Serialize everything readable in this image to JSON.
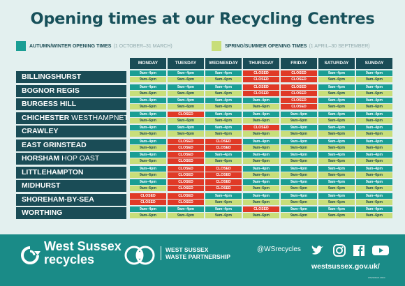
{
  "title": "Opening times at our Recycling Centres",
  "legend": {
    "autumn_label": "AUTUMN/WINTER OPENING TIMES",
    "autumn_range": "(1 OCTOBER–31 MARCH)",
    "spring_label": "SPRING/SUMMER OPENING TIMES",
    "spring_range": "(1 APRIL–30 SEPTEMBER)",
    "autumn_color": "#1a9e94",
    "spring_color": "#c8de7a",
    "closed_color": "#e03a27"
  },
  "days": [
    "MONDAY",
    "TUESDAY",
    "WEDNESDAY",
    "THURSDAY",
    "FRIDAY",
    "SATURDAY",
    "SUNDAY"
  ],
  "centres": [
    {
      "name": "BILLINGSHURST",
      "suffix": "",
      "autumn": [
        "9am–4pm",
        "9am–4pm",
        "9am–4pm",
        "CLOSED",
        "CLOSED",
        "9am–4pm",
        "9am–4pm"
      ],
      "spring": [
        "9am–6pm",
        "9am–6pm",
        "9am–6pm",
        "CLOSED",
        "CLOSED",
        "9am–6pm",
        "9am–6pm"
      ]
    },
    {
      "name": "BOGNOR REGIS",
      "suffix": "",
      "autumn": [
        "9am–4pm",
        "9am–4pm",
        "9am–4pm",
        "CLOSED",
        "CLOSED",
        "9am–4pm",
        "9am–4pm"
      ],
      "spring": [
        "9am–6pm",
        "9am–6pm",
        "9am–6pm",
        "CLOSED",
        "CLOSED",
        "9am–6pm",
        "9am–6pm"
      ]
    },
    {
      "name": "BURGESS HILL",
      "suffix": "",
      "autumn": [
        "9am–4pm",
        "9am–4pm",
        "9am–4pm",
        "9am–4pm",
        "CLOSED",
        "9am–4pm",
        "9am–4pm"
      ],
      "spring": [
        "9am–6pm",
        "9am–6pm",
        "9am–6pm",
        "9am–6pm",
        "CLOSED",
        "9am–6pm",
        "9am–6pm"
      ]
    },
    {
      "name": "CHICHESTER",
      "suffix": " WESTHAMPNETT",
      "autumn": [
        "9am–4pm",
        "CLOSED",
        "9am–4pm",
        "9am–4pm",
        "9am–4pm",
        "9am–4pm",
        "9am–4pm"
      ],
      "spring": [
        "9am–6pm",
        "9am–6pm",
        "9am–6pm",
        "9am–6pm",
        "9am–6pm",
        "9am–6pm",
        "9am–6pm"
      ]
    },
    {
      "name": "CRAWLEY",
      "suffix": "",
      "autumn": [
        "9am–4pm",
        "9am–4pm",
        "9am–4pm",
        "CLOSED",
        "9am–4pm",
        "9am–4pm",
        "9am–4pm"
      ],
      "spring": [
        "9am–6pm",
        "9am–6pm",
        "9am–6pm",
        "9am–6pm",
        "9am–6pm",
        "9am–6pm",
        "9am–6pm"
      ]
    },
    {
      "name": "EAST GRINSTEAD",
      "suffix": "",
      "autumn": [
        "9am–4pm",
        "CLOSED",
        "CLOSED",
        "9am–4pm",
        "9am–4pm",
        "9am–4pm",
        "9am–4pm"
      ],
      "spring": [
        "9am–6pm",
        "CLOSED",
        "CLOSED",
        "9am–6pm",
        "9am–6pm",
        "9am–6pm",
        "9am–6pm"
      ]
    },
    {
      "name": "HORSHAM",
      "suffix": " HOP OAST",
      "autumn": [
        "9am–4pm",
        "CLOSED",
        "9am–4pm",
        "9am–4pm",
        "9am–4pm",
        "9am–4pm",
        "9am–4pm"
      ],
      "spring": [
        "9am–6pm",
        "CLOSED",
        "9am–6pm",
        "9am–6pm",
        "9am–6pm",
        "9am–6pm",
        "9am–6pm"
      ]
    },
    {
      "name": "LITTLEHAMPTON",
      "suffix": "",
      "autumn": [
        "9am–4pm",
        "CLOSED",
        "CLOSED",
        "9am–4pm",
        "9am–4pm",
        "9am–4pm",
        "9am–4pm"
      ],
      "spring": [
        "9am–6pm",
        "CLOSED",
        "CLOSED",
        "9am–6pm",
        "9am–6pm",
        "9am–6pm",
        "9am–6pm"
      ]
    },
    {
      "name": "MIDHURST",
      "suffix": "",
      "autumn": [
        "9am–4pm",
        "CLOSED",
        "CLOSED",
        "9am–4pm",
        "9am–4pm",
        "9am–4pm",
        "9am–4pm"
      ],
      "spring": [
        "9am–6pm",
        "CLOSED",
        "CLOSED",
        "9am–6pm",
        "9am–6pm",
        "9am–6pm",
        "9am–6pm"
      ]
    },
    {
      "name": "SHOREHAM-BY-SEA",
      "suffix": "",
      "autumn": [
        "CLOSED",
        "CLOSED",
        "9am–4pm",
        "9am–4pm",
        "9am–4pm",
        "9am–4pm",
        "9am–4pm"
      ],
      "spring": [
        "CLOSED",
        "CLOSED",
        "9am–6pm",
        "9am–6pm",
        "9am–6pm",
        "9am–6pm",
        "9am–6pm"
      ]
    },
    {
      "name": "WORTHING",
      "suffix": "",
      "autumn": [
        "9am–4pm",
        "9am–4pm",
        "9am–4pm",
        "CLOSED",
        "9am–4pm",
        "9am–4pm",
        "9am–4pm"
      ],
      "spring": [
        "9am–6pm",
        "9am–6pm",
        "9am–6pm",
        "9am–6pm",
        "9am–6pm",
        "9am–6pm",
        "9am–6pm"
      ]
    }
  ],
  "footer": {
    "brand_line1": "West Sussex",
    "brand_line2": "recycles",
    "partnership_line1": "WEST SUSSEX",
    "partnership_line2": "WASTE PARTNERSHIP",
    "handle": "@WSrecycles",
    "website": "westsussex.gov.uk/",
    "code": "WS23/06/21 R624"
  }
}
